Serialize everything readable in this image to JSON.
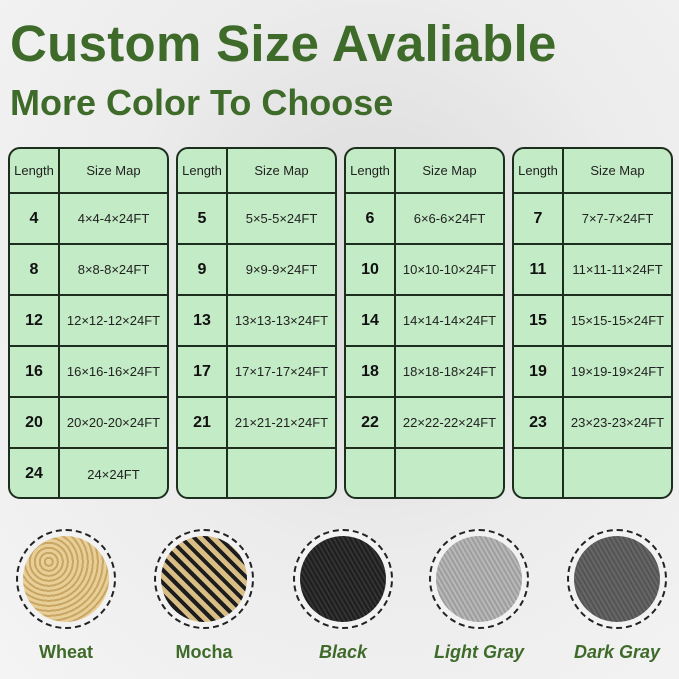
{
  "title": "Custom Size Avaliable",
  "subtitle": "More Color To Choose",
  "table_headers": {
    "length": "Length",
    "size_map": "Size Map"
  },
  "tables": [
    {
      "rows": [
        {
          "length": "4",
          "size": "4×4-4×24FT"
        },
        {
          "length": "8",
          "size": "8×8-8×24FT"
        },
        {
          "length": "12",
          "size": "12×12-12×24FT"
        },
        {
          "length": "16",
          "size": "16×16-16×24FT"
        },
        {
          "length": "20",
          "size": "20×20-20×24FT"
        },
        {
          "length": "24",
          "size": "24×24FT"
        }
      ]
    },
    {
      "rows": [
        {
          "length": "5",
          "size": "5×5-5×24FT"
        },
        {
          "length": "9",
          "size": "9×9-9×24FT"
        },
        {
          "length": "13",
          "size": "13×13-13×24FT"
        },
        {
          "length": "17",
          "size": "17×17-17×24FT"
        },
        {
          "length": "21",
          "size": "21×21-21×24FT"
        },
        {
          "length": "",
          "size": ""
        }
      ]
    },
    {
      "rows": [
        {
          "length": "6",
          "size": "6×6-6×24FT"
        },
        {
          "length": "10",
          "size": "10×10-10×24FT"
        },
        {
          "length": "14",
          "size": "14×14-14×24FT"
        },
        {
          "length": "18",
          "size": "18×18-18×24FT"
        },
        {
          "length": "22",
          "size": "22×22-22×24FT"
        },
        {
          "length": "",
          "size": ""
        }
      ]
    },
    {
      "rows": [
        {
          "length": "7",
          "size": "7×7-7×24FT"
        },
        {
          "length": "11",
          "size": "11×11-11×24FT"
        },
        {
          "length": "15",
          "size": "15×15-15×24FT"
        },
        {
          "length": "19",
          "size": "19×19-19×24FT"
        },
        {
          "length": "23",
          "size": "23×23-23×24FT"
        },
        {
          "length": "",
          "size": ""
        }
      ]
    }
  ],
  "colors": [
    {
      "label": "Wheat",
      "swatch": "#d9b97a",
      "italic": false
    },
    {
      "label": "Mocha",
      "swatch": "#8a7550",
      "italic": false
    },
    {
      "label": "Black",
      "swatch": "#2a2a2a",
      "italic": true
    },
    {
      "label": "Light Gray",
      "swatch": "#a9a9a9",
      "italic": true
    },
    {
      "label": "Dark Gray",
      "swatch": "#5d5d5d",
      "italic": true
    }
  ],
  "accent": "#3f6b2a"
}
